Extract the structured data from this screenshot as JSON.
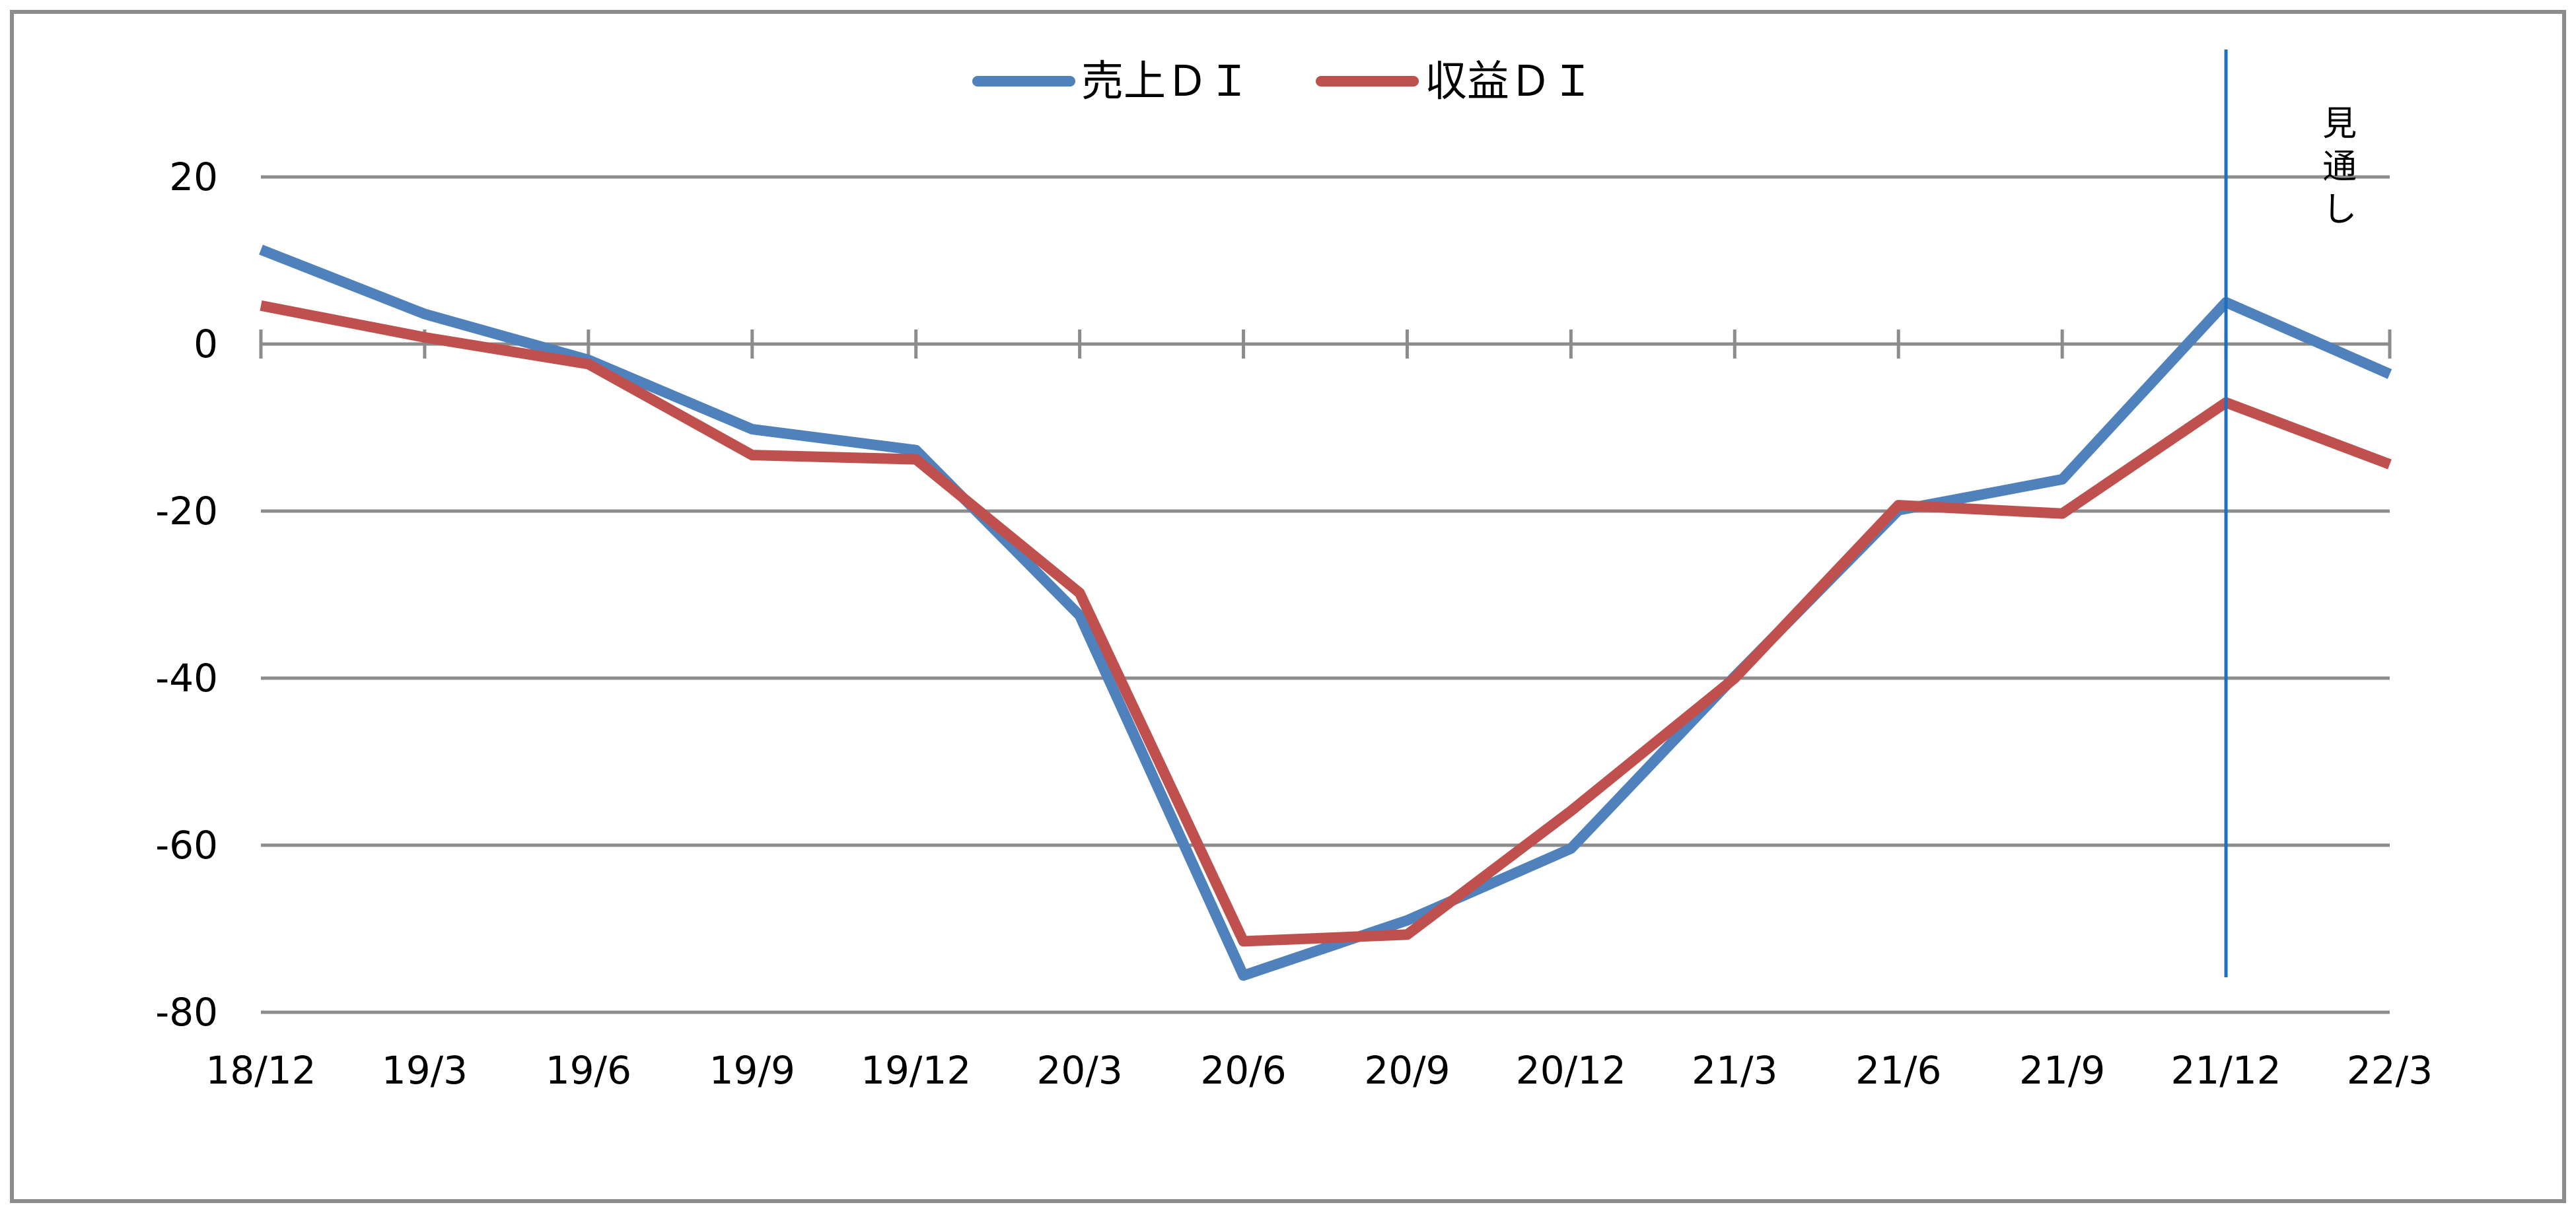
{
  "chart_data": {
    "type": "line",
    "title": "",
    "xlabel": "",
    "ylabel": "",
    "categories": [
      "18/12",
      "19/3",
      "19/6",
      "19/9",
      "19/12",
      "20/3",
      "20/6",
      "20/9",
      "20/12",
      "21/3",
      "21/6",
      "21/9",
      "21/12",
      "22/3"
    ],
    "ylim": [
      -80,
      20
    ],
    "yticks": [
      "20",
      "0",
      "-20",
      "-40",
      "-60",
      "-80"
    ],
    "ytick_values": [
      20,
      0,
      -20,
      -40,
      -60,
      -80
    ],
    "grid": true,
    "legend_position": "top-center",
    "series": [
      {
        "name": "売上ＤＩ",
        "color": "#4f81bd",
        "values": [
          11.3,
          3.6,
          -1.9,
          -10.2,
          -12.7,
          -32.5,
          -75.6,
          -69.0,
          -60.4,
          -39.8,
          -19.9,
          -16.2,
          5.0,
          -3.6
        ]
      },
      {
        "name": "収益ＤＩ",
        "color": "#c0504d",
        "values": [
          4.6,
          0.8,
          -2.4,
          -13.3,
          -13.8,
          -29.8,
          -71.5,
          -70.7,
          -55.9,
          -40.0,
          -19.3,
          -20.3,
          -7.0,
          -14.4
        ]
      }
    ],
    "forecast": {
      "category": "21/12",
      "label_chars": [
        "見",
        "通",
        "し"
      ],
      "color": "#1f6fbf"
    }
  }
}
